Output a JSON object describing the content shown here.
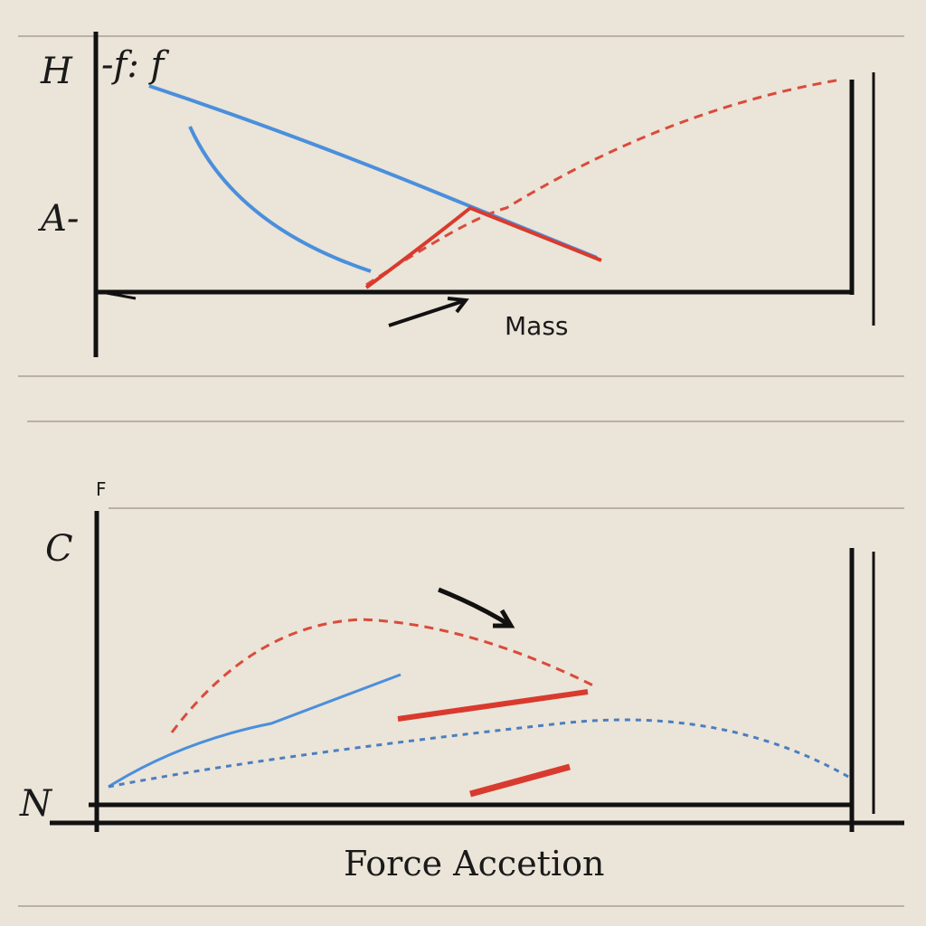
{
  "top_panel": {
    "labels": [
      "H",
      "-f: f",
      "A-"
    ],
    "axis_label": "Mass"
  },
  "bottom_panel": {
    "labels": [
      "F",
      "C",
      "N"
    ],
    "axis_label": "Force Accetion"
  }
}
